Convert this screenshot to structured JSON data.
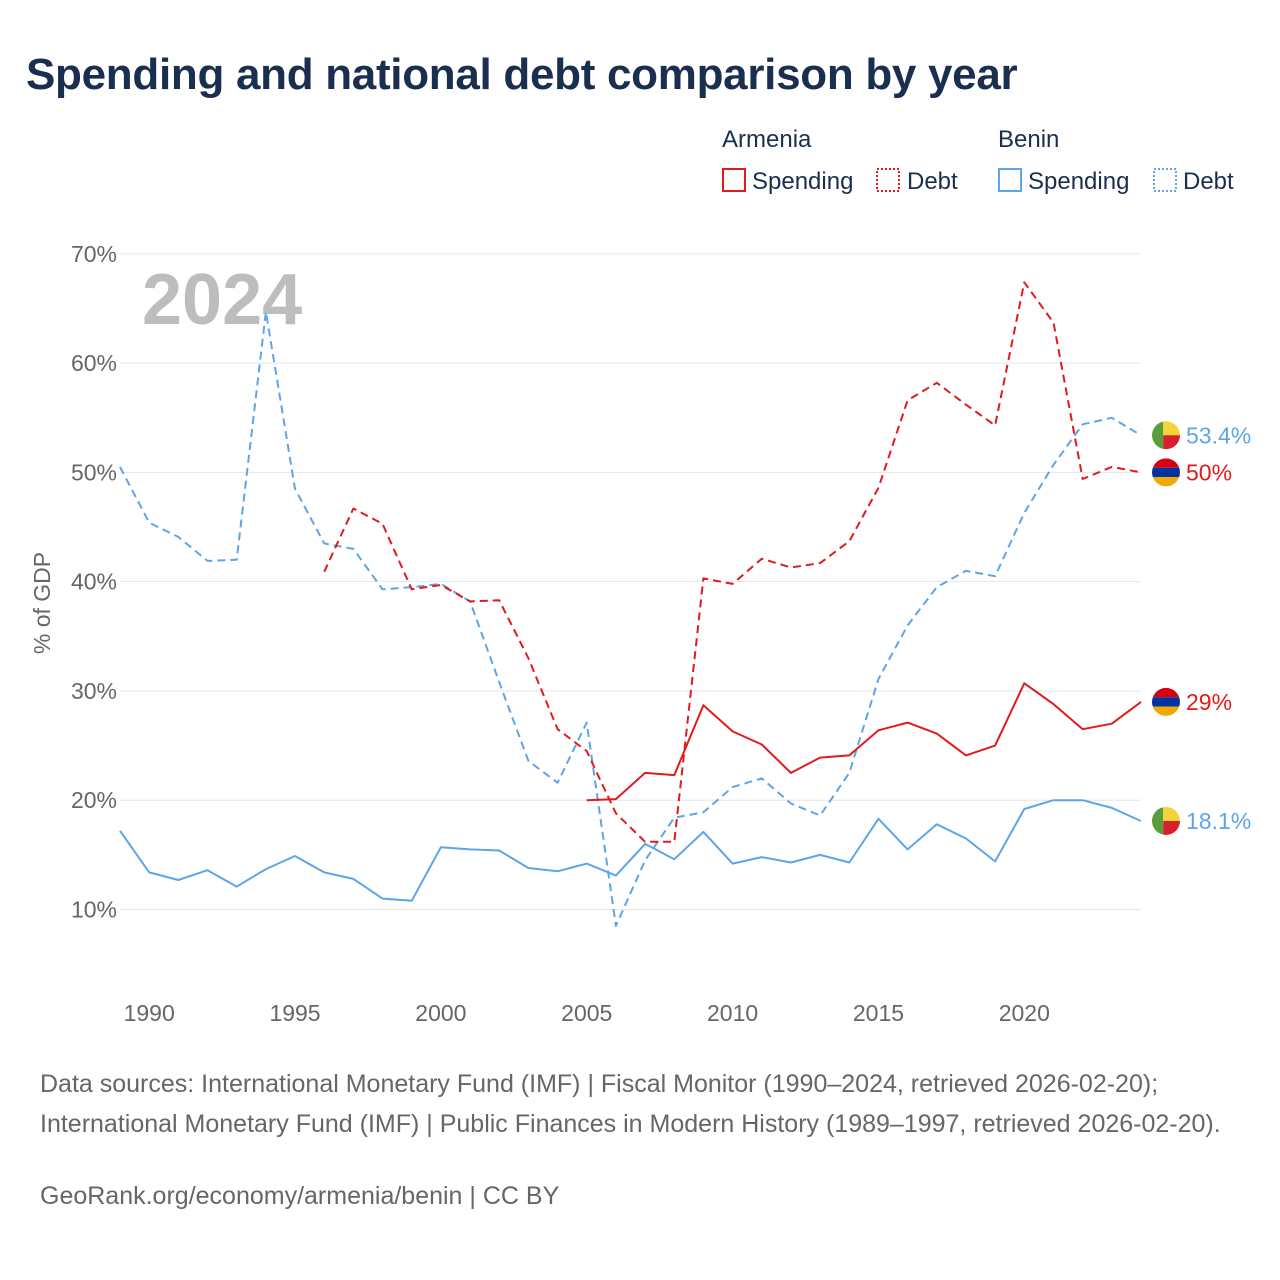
{
  "title": "Spending and national debt comparison by year",
  "year_watermark": "2024",
  "legend": {
    "groups": [
      {
        "country": "Armenia",
        "color": "#e31a1c",
        "items": [
          {
            "label": "Spending",
            "style": "solid"
          },
          {
            "label": "Debt",
            "style": "dotted"
          }
        ]
      },
      {
        "country": "Benin",
        "color": "#5da5e8",
        "items": [
          {
            "label": "Spending",
            "style": "solid"
          },
          {
            "label": "Debt",
            "style": "dotted"
          }
        ]
      }
    ]
  },
  "chart_data": {
    "type": "line",
    "ylabel": "% of GDP",
    "xlabel": "",
    "xlim": [
      1989,
      2024
    ],
    "ylim": [
      3,
      72
    ],
    "y_ticks": [
      10,
      20,
      30,
      40,
      50,
      60,
      70
    ],
    "y_tick_labels": [
      "10%",
      "20%",
      "30%",
      "40%",
      "50%",
      "60%",
      "70%"
    ],
    "x_ticks": [
      1990,
      1995,
      2000,
      2005,
      2010,
      2015,
      2020
    ],
    "x_tick_labels": [
      "1990",
      "1995",
      "2000",
      "2005",
      "2010",
      "2015",
      "2020"
    ],
    "grid": true,
    "series": [
      {
        "name": "Benin Debt",
        "country": "Benin",
        "metric": "Debt",
        "color": "#5da5e8",
        "dash": "dashed",
        "points": [
          [
            1989,
            50.5
          ],
          [
            1990,
            45.4
          ],
          [
            1991,
            44.1
          ],
          [
            1992,
            41.9
          ],
          [
            1993,
            42
          ],
          [
            1994,
            64.7
          ],
          [
            1995,
            48.5
          ],
          [
            1996,
            43.5
          ],
          [
            1997,
            43
          ],
          [
            1998,
            39.3
          ],
          [
            1999,
            39.5
          ],
          [
            2000,
            39.8
          ],
          [
            2001,
            38.2
          ],
          [
            2002,
            30.8
          ],
          [
            2003,
            23.6
          ],
          [
            2004,
            21.6
          ],
          [
            2005,
            27.1
          ],
          [
            2006,
            8.5
          ],
          [
            2007,
            14.5
          ],
          [
            2008,
            18.4
          ],
          [
            2009,
            18.9
          ],
          [
            2010,
            21.2
          ],
          [
            2011,
            22
          ],
          [
            2012,
            19.7
          ],
          [
            2013,
            18.6
          ],
          [
            2014,
            22.5
          ],
          [
            2015,
            31.1
          ],
          [
            2016,
            36
          ],
          [
            2017,
            39.5
          ],
          [
            2018,
            41
          ],
          [
            2019,
            40.5
          ],
          [
            2020,
            46.3
          ],
          [
            2021,
            50.7
          ],
          [
            2022,
            54.4
          ],
          [
            2023,
            55
          ],
          [
            2024,
            53.4
          ]
        ]
      },
      {
        "name": "Benin Spending",
        "country": "Benin",
        "metric": "Spending",
        "color": "#5da5e8",
        "dash": "solid",
        "points": [
          [
            1989,
            17.2
          ],
          [
            1990,
            13.4
          ],
          [
            1991,
            12.7
          ],
          [
            1992,
            13.6
          ],
          [
            1993,
            12.1
          ],
          [
            1994,
            13.7
          ],
          [
            1995,
            14.9
          ],
          [
            1996,
            13.4
          ],
          [
            1997,
            12.8
          ],
          [
            1998,
            11
          ],
          [
            1999,
            10.8
          ],
          [
            2000,
            15.7
          ],
          [
            2001,
            15.5
          ],
          [
            2002,
            15.4
          ],
          [
            2003,
            13.8
          ],
          [
            2004,
            13.5
          ],
          [
            2005,
            14.2
          ],
          [
            2006,
            13.1
          ],
          [
            2007,
            16
          ],
          [
            2008,
            14.6
          ],
          [
            2009,
            17.1
          ],
          [
            2010,
            14.2
          ],
          [
            2011,
            14.8
          ],
          [
            2012,
            14.3
          ],
          [
            2013,
            15
          ],
          [
            2014,
            14.3
          ],
          [
            2015,
            18.3
          ],
          [
            2016,
            15.5
          ],
          [
            2017,
            17.8
          ],
          [
            2018,
            16.5
          ],
          [
            2019,
            14.4
          ],
          [
            2020,
            19.2
          ],
          [
            2021,
            20
          ],
          [
            2022,
            20
          ],
          [
            2023,
            19.3
          ],
          [
            2024,
            18.1
          ]
        ]
      },
      {
        "name": "Armenia Debt",
        "country": "Armenia",
        "metric": "Debt",
        "color": "#e31a1c",
        "dash": "dashed",
        "points": [
          [
            1996,
            40.9
          ],
          [
            1997,
            46.7
          ],
          [
            1998,
            45.3
          ],
          [
            1999,
            39.3
          ],
          [
            2000,
            39.7
          ],
          [
            2001,
            38.2
          ],
          [
            2002,
            38.3
          ],
          [
            2003,
            33
          ],
          [
            2004,
            26.5
          ],
          [
            2005,
            24.5
          ],
          [
            2006,
            18.8
          ],
          [
            2007,
            16.2
          ],
          [
            2008,
            16.2
          ],
          [
            2009,
            40.3
          ],
          [
            2010,
            39.8
          ],
          [
            2011,
            42.1
          ],
          [
            2012,
            41.3
          ],
          [
            2013,
            41.7
          ],
          [
            2014,
            43.7
          ],
          [
            2015,
            48.6
          ],
          [
            2016,
            56.6
          ],
          [
            2017,
            58.2
          ],
          [
            2018,
            56.2
          ],
          [
            2019,
            54.3
          ],
          [
            2020,
            67.4
          ],
          [
            2021,
            63.7
          ],
          [
            2022,
            49.4
          ],
          [
            2023,
            50.5
          ],
          [
            2024,
            50
          ]
        ]
      },
      {
        "name": "Armenia Spending",
        "country": "Armenia",
        "metric": "Spending",
        "color": "#e31a1c",
        "dash": "solid",
        "points": [
          [
            2005,
            20
          ],
          [
            2006,
            20.1
          ],
          [
            2007,
            22.5
          ],
          [
            2008,
            22.3
          ],
          [
            2009,
            28.7
          ],
          [
            2010,
            26.3
          ],
          [
            2011,
            25.1
          ],
          [
            2012,
            22.5
          ],
          [
            2013,
            23.9
          ],
          [
            2014,
            24.1
          ],
          [
            2015,
            26.4
          ],
          [
            2016,
            27.1
          ],
          [
            2017,
            26.1
          ],
          [
            2018,
            24.1
          ],
          [
            2019,
            25
          ],
          [
            2020,
            30.7
          ],
          [
            2021,
            28.8
          ],
          [
            2022,
            26.5
          ],
          [
            2023,
            27
          ],
          [
            2024,
            29
          ]
        ]
      }
    ],
    "end_labels": [
      {
        "series": "Benin Debt",
        "text": "53.4%",
        "value": 53.4,
        "color": "#5da5e8",
        "flag": "benin"
      },
      {
        "series": "Armenia Debt",
        "text": "50%",
        "value": 50,
        "color": "#e31a1c",
        "flag": "armenia"
      },
      {
        "series": "Armenia Spending",
        "text": "29%",
        "value": 29,
        "color": "#e31a1c",
        "flag": "armenia"
      },
      {
        "series": "Benin Spending",
        "text": "18.1%",
        "value": 18.1,
        "color": "#5da5e8",
        "flag": "benin"
      }
    ]
  },
  "sources": "Data sources: International Monetary Fund (IMF) | Fiscal Monitor (1990–2024, retrieved 2026-02-20); International Monetary Fund (IMF) | Public Finances in Modern History (1989–1997, retrieved 2026-02-20).",
  "credit": "GeoRank.org/economy/armenia/benin | CC BY"
}
